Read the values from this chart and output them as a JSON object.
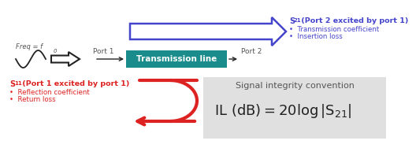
{
  "bg_color": "#ffffff",
  "teal_box_color": "#1a8c8c",
  "teal_box_text": "Transmission line",
  "teal_box_text_color": "#ffffff",
  "blue_color": "#4444cc",
  "black_color": "#222222",
  "red_color": "#dd2222",
  "dark_gray": "#555555",
  "port1_label": "Port 1",
  "port2_label": "Port 2",
  "freq_label": "Freq = f",
  "freq_sub": "0",
  "s21_title": "S",
  "s21_title_sub": "21",
  "s21_title_rest": " (Port 2 excited by port 1)",
  "s21_bullet1": "•  Transmission coefficient",
  "s21_bullet2": "•  Insertion loss",
  "s11_title": "S",
  "s11_title_sub": "11",
  "s11_title_rest": " (Port 1 excited by port 1)",
  "s11_bullet1": "•  Reflection coefficient",
  "s11_bullet2": "•  Return loss",
  "sig_integrity_label": "Signal integrity convention",
  "gray_bg": "#e0e0e0"
}
